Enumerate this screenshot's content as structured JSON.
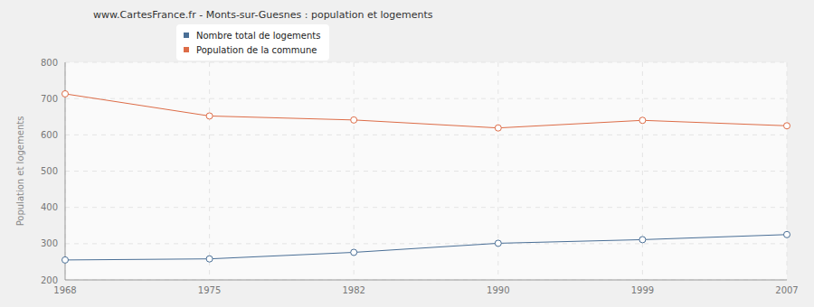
{
  "chart_data": {
    "type": "line",
    "title": "www.CartesFrance.fr - Monts-sur-Guesnes : population et logements",
    "y_label": "Population et logements",
    "categories": [
      "1968",
      "1975",
      "1982",
      "1990",
      "1999",
      "2007"
    ],
    "series": [
      {
        "name": "Nombre total de logements",
        "color": "#4a6f96",
        "values": [
          255,
          258,
          276,
          301,
          311,
          325
        ],
        "marker": "circle"
      },
      {
        "name": "Population de la commune",
        "color": "#dd6c47",
        "values": [
          713,
          652,
          641,
          619,
          640,
          625
        ],
        "marker": "circle"
      }
    ],
    "ylim": [
      200,
      800
    ],
    "yticks": [
      200,
      300,
      400,
      500,
      600,
      700,
      800
    ],
    "grid": true
  }
}
